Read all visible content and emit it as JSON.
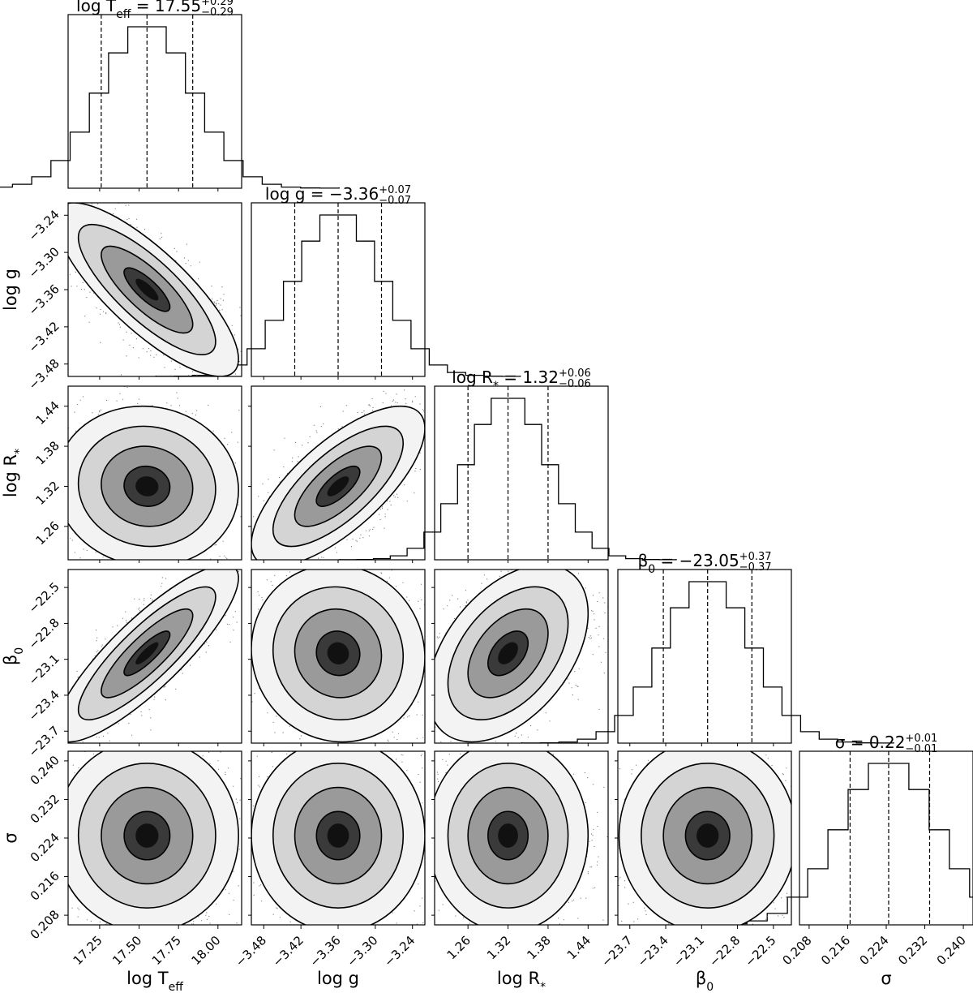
{
  "chart_data": {
    "type": "corner",
    "parameters": [
      {
        "key": "logTeff",
        "label": "log T_eff",
        "range": [
          17.05,
          18.15
        ],
        "ticks": [
          17.25,
          17.5,
          17.75,
          18.0
        ],
        "tick_labels": [
          "17.25",
          "17.50",
          "17.75",
          "18.00"
        ],
        "median": 17.55,
        "err_plus": 0.29,
        "err_minus": 0.29,
        "q16": 17.26,
        "q84": 17.84,
        "title_value": "17.55",
        "title_plus": "+0.29",
        "title_minus": "−0.29"
      },
      {
        "key": "logg",
        "label": "log g",
        "range": [
          -3.5,
          -3.22
        ],
        "ticks": [
          -3.48,
          -3.42,
          -3.36,
          -3.3,
          -3.24
        ],
        "tick_labels": [
          "−3.48",
          "−3.42",
          "−3.36",
          "−3.30",
          "−3.24"
        ],
        "median": -3.36,
        "err_plus": 0.07,
        "err_minus": 0.07,
        "q16": -3.43,
        "q84": -3.29,
        "title_value": "−3.36",
        "title_plus": "+0.07",
        "title_minus": "−0.07"
      },
      {
        "key": "logR",
        "label": "log R*",
        "range": [
          1.21,
          1.47
        ],
        "ticks": [
          1.26,
          1.32,
          1.38,
          1.44
        ],
        "tick_labels": [
          "1.26",
          "1.32",
          "1.38",
          "1.44"
        ],
        "median": 1.32,
        "err_plus": 0.06,
        "err_minus": 0.06,
        "q16": 1.26,
        "q84": 1.38,
        "title_value": "1.32",
        "title_plus": "+0.06",
        "title_minus": "−0.06"
      },
      {
        "key": "beta0",
        "label": "β_0",
        "range": [
          -23.8,
          -22.35
        ],
        "ticks": [
          -23.7,
          -23.4,
          -23.1,
          -22.8,
          -22.5
        ],
        "tick_labels": [
          "−23.7",
          "−23.4",
          "−23.1",
          "−22.8",
          "−22.5"
        ],
        "median": -23.05,
        "err_plus": 0.37,
        "err_minus": 0.37,
        "q16": -23.42,
        "q84": -22.68,
        "title_value": "−23.05",
        "title_plus": "+0.37",
        "title_minus": "−0.37"
      },
      {
        "key": "sigma",
        "label": "σ",
        "range": [
          0.206,
          0.242
        ],
        "ticks": [
          0.208,
          0.216,
          0.224,
          0.232,
          0.24
        ],
        "tick_labels": [
          "0.208",
          "0.216",
          "0.224",
          "0.232",
          "0.240"
        ],
        "median": 0.2245,
        "err_plus": 0.01,
        "err_minus": 0.01,
        "q16": 0.2165,
        "q84": 0.233,
        "title_value": "0.22",
        "title_plus": "+0.01",
        "title_minus": "−0.01"
      }
    ],
    "correlations": [
      {
        "pair": [
          "logTeff",
          "logg"
        ],
        "rho": -0.8
      },
      {
        "pair": [
          "logTeff",
          "logR"
        ],
        "rho": -0.05
      },
      {
        "pair": [
          "logg",
          "logR"
        ],
        "rho": 0.72
      },
      {
        "pair": [
          "logTeff",
          "beta0"
        ],
        "rho": 0.85
      },
      {
        "pair": [
          "logg",
          "beta0"
        ],
        "rho": -0.05
      },
      {
        "pair": [
          "logR",
          "beta0"
        ],
        "rho": 0.45
      },
      {
        "pair": [
          "logTeff",
          "sigma"
        ],
        "rho": 0.0
      },
      {
        "pair": [
          "logg",
          "sigma"
        ],
        "rho": 0.0
      },
      {
        "pair": [
          "logR",
          "sigma"
        ],
        "rho": 0.0
      },
      {
        "pair": [
          "beta0",
          "sigma"
        ],
        "rho": 0.0
      }
    ],
    "hist_bins": 20,
    "contour_levels_sigma": [
      0.5,
      1.0,
      1.5,
      2.0
    ]
  },
  "axis_labels": {
    "logTeff": "log T",
    "logTeff_sub": "eff",
    "logg": "log g",
    "logR": "log R",
    "logR_sub": "*",
    "beta0": "β",
    "beta0_sub": "0",
    "sigma": "σ"
  },
  "titles": {
    "t0_name": "log T",
    "t0_sub": "eff",
    "t1_name": "log g",
    "t2_name": "log R",
    "t2_sub": "*",
    "t3_name": "β",
    "t3_sub": "0",
    "t4_name": "σ"
  }
}
